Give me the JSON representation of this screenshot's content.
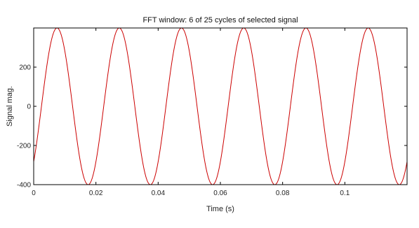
{
  "chart_data": {
    "type": "line",
    "title": "FFT window: 6 of 25 cycles of selected signal",
    "xlabel": "Time (s)",
    "ylabel": "Signal mag.",
    "xlim": [
      0,
      0.12
    ],
    "ylim": [
      -400,
      400
    ],
    "x_ticks": [
      0,
      0.02,
      0.04,
      0.06,
      0.08,
      0.1
    ],
    "x_tick_labels": [
      "0",
      "0.02",
      "0.04",
      "0.06",
      "0.08",
      "0.1"
    ],
    "y_ticks": [
      -400,
      -200,
      0,
      200
    ],
    "y_tick_labels": [
      "-400",
      "-200",
      "0",
      "200"
    ],
    "grid": false,
    "series": [
      {
        "color": "#cc0000",
        "signal": {
          "amplitude": 400,
          "frequency_hz": 50,
          "start_s": 0,
          "end_s": 0.12,
          "phase_deg": -45
        }
      }
    ]
  }
}
